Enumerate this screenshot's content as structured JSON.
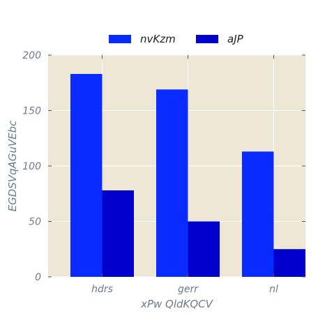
{
  "chart_data": {
    "type": "bar",
    "title": "",
    "xlabel": "xPw  QldKQCV",
    "ylabel": "EGDSVqAGuVEbc",
    "categories": [
      "hdrs",
      "gerr",
      "nl"
    ],
    "series": [
      {
        "name": "nvKzm",
        "values": [
          183,
          169,
          113
        ],
        "color": "#0a2bff"
      },
      {
        "name": "aJP",
        "values": [
          78,
          50,
          25
        ],
        "color": "#0000cc"
      }
    ],
    "ylim": [
      0,
      200
    ],
    "yticks": [
      0,
      50,
      100,
      150,
      200
    ],
    "grid": true,
    "legend_position": "top-center",
    "background": "#efe7d6",
    "grid_color": "#ffffff",
    "text_color": "#6b7c8c"
  }
}
